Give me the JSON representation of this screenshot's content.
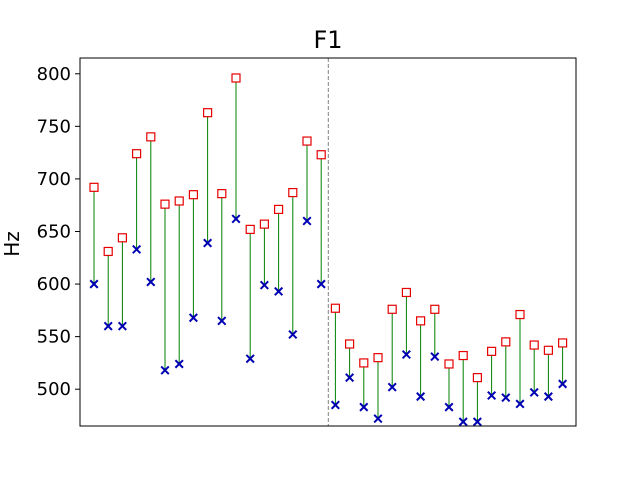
{
  "chart_data": {
    "type": "scatter",
    "title": "F1",
    "xlabel": "",
    "ylabel": "Hz",
    "ylim": [
      465,
      815
    ],
    "yticks": [
      500,
      550,
      600,
      650,
      700,
      750,
      800
    ],
    "grid": false,
    "x_ticks_shown": false,
    "divider_between_index": [
      16,
      17
    ],
    "divider_style": "dashed",
    "colors": {
      "upper_marker": "#e60000",
      "lower_marker": "#0000b3",
      "connector": "#008000",
      "divider": "#808080"
    },
    "series": [
      {
        "marker": "square-open",
        "values": [
          692,
          631,
          644,
          724,
          740,
          676,
          679,
          685,
          763,
          686,
          796,
          652,
          657,
          671,
          687,
          736,
          723,
          577,
          543,
          525,
          530,
          576,
          592,
          565,
          576,
          524,
          532,
          511,
          536,
          545,
          571,
          542,
          537,
          544
        ]
      },
      {
        "marker": "x",
        "values": [
          600,
          560,
          560,
          633,
          602,
          518,
          524,
          568,
          639,
          565,
          662,
          529,
          599,
          593,
          552,
          660,
          600,
          485,
          511,
          483,
          472,
          502,
          533,
          493,
          531,
          483,
          469,
          469,
          494,
          492,
          486,
          497,
          493,
          505
        ]
      }
    ]
  }
}
